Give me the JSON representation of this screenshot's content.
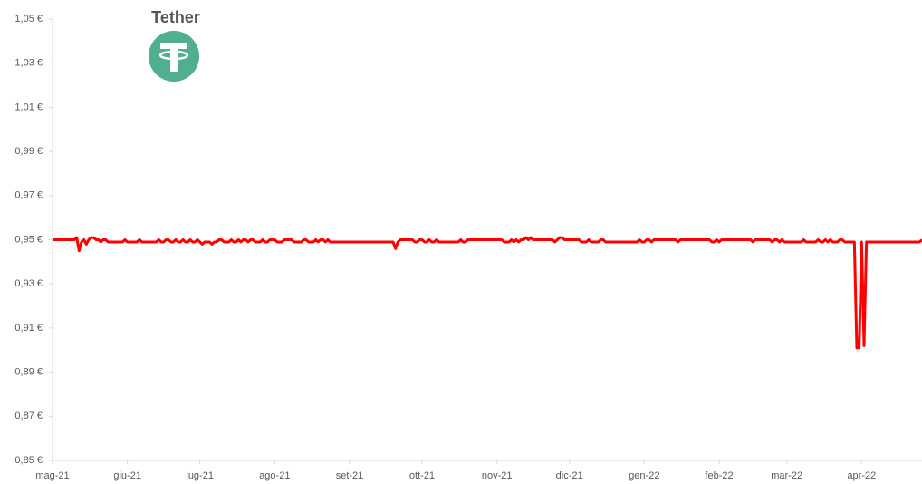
{
  "chart_data": {
    "type": "line",
    "title": "Tether",
    "series": [
      {
        "color": "#ff0000",
        "values": [
          0.95,
          0.95,
          0.95,
          0.95,
          0.95,
          0.95,
          0.95,
          0.95,
          0.95,
          0.95,
          0.951,
          0.945,
          0.949,
          0.95,
          0.948,
          0.95,
          0.951,
          0.951,
          0.95,
          0.95,
          0.949,
          0.95,
          0.95,
          0.949,
          0.949,
          0.949,
          0.949,
          0.949,
          0.949,
          0.949,
          0.95,
          0.949,
          0.949,
          0.949,
          0.949,
          0.949,
          0.95,
          0.949,
          0.949,
          0.949,
          0.949,
          0.949,
          0.949,
          0.949,
          0.95,
          0.949,
          0.949,
          0.95,
          0.95,
          0.949,
          0.949,
          0.95,
          0.949,
          0.949,
          0.95,
          0.949,
          0.949,
          0.95,
          0.949,
          0.949,
          0.95,
          0.949,
          0.948,
          0.949,
          0.949,
          0.949,
          0.948,
          0.949,
          0.949,
          0.95,
          0.95,
          0.949,
          0.949,
          0.949,
          0.95,
          0.949,
          0.949,
          0.95,
          0.949,
          0.95,
          0.95,
          0.949,
          0.95,
          0.95,
          0.949,
          0.949,
          0.949,
          0.95,
          0.949,
          0.949,
          0.95,
          0.95,
          0.95,
          0.949,
          0.949,
          0.949,
          0.95,
          0.95,
          0.95,
          0.95,
          0.949,
          0.949,
          0.949,
          0.949,
          0.95,
          0.95,
          0.949,
          0.949,
          0.949,
          0.95,
          0.949,
          0.95,
          0.95,
          0.949,
          0.95,
          0.949,
          0.949,
          0.949,
          0.949,
          0.949,
          0.949,
          0.949,
          0.949,
          0.949,
          0.949,
          0.949,
          0.949,
          0.949,
          0.949,
          0.949,
          0.949,
          0.949,
          0.949,
          0.949,
          0.949,
          0.949,
          0.949,
          0.949,
          0.949,
          0.949,
          0.949,
          0.949,
          0.946,
          0.949,
          0.95,
          0.95,
          0.95,
          0.95,
          0.95,
          0.95,
          0.949,
          0.949,
          0.95,
          0.95,
          0.949,
          0.949,
          0.95,
          0.949,
          0.949,
          0.95,
          0.949,
          0.949,
          0.949,
          0.949,
          0.949,
          0.949,
          0.949,
          0.949,
          0.949,
          0.95,
          0.949,
          0.949,
          0.95,
          0.95,
          0.95,
          0.95,
          0.95,
          0.95,
          0.95,
          0.95,
          0.95,
          0.95,
          0.95,
          0.95,
          0.95,
          0.95,
          0.95,
          0.949,
          0.949,
          0.949,
          0.95,
          0.949,
          0.95,
          0.949,
          0.95,
          0.95,
          0.951,
          0.95,
          0.951,
          0.95,
          0.95,
          0.95,
          0.95,
          0.95,
          0.95,
          0.95,
          0.95,
          0.95,
          0.949,
          0.95,
          0.951,
          0.951,
          0.95,
          0.95,
          0.95,
          0.95,
          0.95,
          0.95,
          0.95,
          0.949,
          0.949,
          0.949,
          0.95,
          0.949,
          0.949,
          0.949,
          0.949,
          0.95,
          0.95,
          0.949,
          0.949,
          0.949,
          0.949,
          0.949,
          0.949,
          0.949,
          0.949,
          0.949,
          0.949,
          0.949,
          0.949,
          0.949,
          0.949,
          0.95,
          0.949,
          0.949,
          0.95,
          0.95,
          0.949,
          0.95,
          0.95,
          0.95,
          0.95,
          0.95,
          0.95,
          0.95,
          0.95,
          0.95,
          0.95,
          0.949,
          0.95,
          0.95,
          0.95,
          0.95,
          0.95,
          0.95,
          0.95,
          0.95,
          0.95,
          0.95,
          0.95,
          0.95,
          0.95,
          0.949,
          0.949,
          0.95,
          0.949,
          0.95,
          0.95,
          0.95,
          0.95,
          0.95,
          0.95,
          0.95,
          0.95,
          0.95,
          0.95,
          0.95,
          0.95,
          0.95,
          0.949,
          0.95,
          0.95,
          0.95,
          0.95,
          0.95,
          0.95,
          0.95,
          0.949,
          0.95,
          0.95,
          0.949,
          0.95,
          0.949,
          0.949,
          0.949,
          0.949,
          0.949,
          0.949,
          0.949,
          0.949,
          0.95,
          0.949,
          0.949,
          0.949,
          0.949,
          0.949,
          0.95,
          0.949,
          0.949,
          0.95,
          0.949,
          0.95,
          0.949,
          0.949,
          0.949,
          0.95,
          0.95,
          0.949,
          0.949,
          0.949,
          0.949,
          0.949,
          0.901,
          0.901,
          0.949,
          0.902,
          0.949,
          0.949,
          0.949,
          0.949,
          0.949,
          0.949,
          0.949,
          0.949,
          0.949,
          0.949,
          0.949,
          0.949,
          0.949,
          0.949,
          0.949,
          0.949,
          0.949,
          0.949,
          0.949,
          0.949,
          0.949,
          0.949,
          0.949,
          0.95
        ]
      }
    ],
    "xlim": [
      0,
      360
    ],
    "xticks": [
      {
        "value": 0,
        "label": "mag-21"
      },
      {
        "value": 31,
        "label": "giu-21"
      },
      {
        "value": 61,
        "label": "lug-21"
      },
      {
        "value": 92,
        "label": "ago-21"
      },
      {
        "value": 123,
        "label": "set-21"
      },
      {
        "value": 153,
        "label": "ott-21"
      },
      {
        "value": 184,
        "label": "nov-21"
      },
      {
        "value": 214,
        "label": "dic-21"
      },
      {
        "value": 245,
        "label": "gen-22"
      },
      {
        "value": 276,
        "label": "feb-22"
      },
      {
        "value": 304,
        "label": "mar-22"
      },
      {
        "value": 335,
        "label": "apr-22"
      }
    ],
    "ylim": [
      0.85,
      1.05
    ],
    "yticks": [
      {
        "value": 0.85,
        "label": "0,85 €"
      },
      {
        "value": 0.87,
        "label": "0,87 €"
      },
      {
        "value": 0.89,
        "label": "0,89 €"
      },
      {
        "value": 0.91,
        "label": "0,91 €"
      },
      {
        "value": 0.93,
        "label": "0,93 €"
      },
      {
        "value": 0.95,
        "label": "0,95 €"
      },
      {
        "value": 0.97,
        "label": "0,97 €"
      },
      {
        "value": 0.99,
        "label": "0,99 €"
      },
      {
        "value": 1.01,
        "label": "1,01 €"
      },
      {
        "value": 1.03,
        "label": "1,03 €"
      },
      {
        "value": 1.05,
        "label": "1,05 €"
      }
    ],
    "grid": false
  }
}
